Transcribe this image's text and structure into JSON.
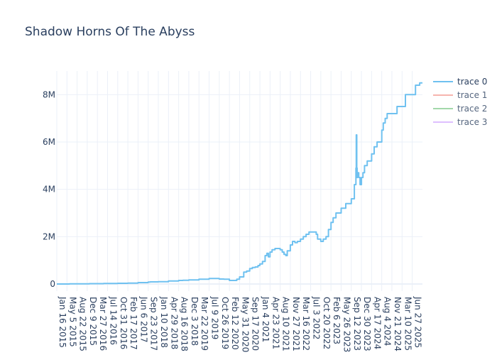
{
  "chart_data": {
    "type": "line",
    "title": "Shadow Horns Of The Abyss",
    "xlabel": "",
    "ylabel": "",
    "x_range": [
      "2015-01-16",
      "2025-10-15"
    ],
    "ylim": [
      -300000,
      9000000
    ],
    "y_ticks": [
      {
        "value": 0,
        "label": "0"
      },
      {
        "value": 2000000,
        "label": "2M"
      },
      {
        "value": 4000000,
        "label": "4M"
      },
      {
        "value": 6000000,
        "label": "6M"
      },
      {
        "value": 8000000,
        "label": "8M"
      }
    ],
    "x_ticks": [
      {
        "date": "2015-01-16",
        "label": "Jan 16 2015"
      },
      {
        "date": "2015-05-05",
        "label": "May 5 2015"
      },
      {
        "date": "2015-08-22",
        "label": "Aug 22 2015"
      },
      {
        "date": "2015-12-09",
        "label": "Dec 9 2015"
      },
      {
        "date": "2016-03-27",
        "label": "Mar 27 2016"
      },
      {
        "date": "2016-07-14",
        "label": "Jul 14 2016"
      },
      {
        "date": "2016-10-31",
        "label": "Oct 31 2016"
      },
      {
        "date": "2017-02-17",
        "label": "Feb 17 2017"
      },
      {
        "date": "2017-06-06",
        "label": "Jun 6 2017"
      },
      {
        "date": "2017-09-23",
        "label": "Sep 23 2017"
      },
      {
        "date": "2018-01-10",
        "label": "Jan 10 2018"
      },
      {
        "date": "2018-04-29",
        "label": "Apr 29 2018"
      },
      {
        "date": "2018-08-16",
        "label": "Aug 16 2018"
      },
      {
        "date": "2018-12-03",
        "label": "Dec 3 2018"
      },
      {
        "date": "2019-03-22",
        "label": "Mar 22 2019"
      },
      {
        "date": "2019-07-09",
        "label": "Jul 9 2019"
      },
      {
        "date": "2019-10-26",
        "label": "Oct 26 2019"
      },
      {
        "date": "2020-02-12",
        "label": "Feb 12 2020"
      },
      {
        "date": "2020-05-31",
        "label": "May 31 2020"
      },
      {
        "date": "2020-09-17",
        "label": "Sep 17 2020"
      },
      {
        "date": "2021-01-04",
        "label": "Jan 4 2021"
      },
      {
        "date": "2021-04-23",
        "label": "Apr 23 2021"
      },
      {
        "date": "2021-08-10",
        "label": "Aug 10 2021"
      },
      {
        "date": "2021-11-27",
        "label": "Nov 27 2021"
      },
      {
        "date": "2022-03-16",
        "label": "Mar 16 2022"
      },
      {
        "date": "2022-07-03",
        "label": "Jul 3 2022"
      },
      {
        "date": "2022-10-20",
        "label": "Oct 20 2022"
      },
      {
        "date": "2023-02-06",
        "label": "Feb 6 2023"
      },
      {
        "date": "2023-05-26",
        "label": "May 26 2023"
      },
      {
        "date": "2023-09-12",
        "label": "Sep 12 2023"
      },
      {
        "date": "2023-12-30",
        "label": "Dec 30 2023"
      },
      {
        "date": "2024-04-17",
        "label": "Apr 17 2024"
      },
      {
        "date": "2024-08-04",
        "label": "Aug 4 2024"
      },
      {
        "date": "2024-11-21",
        "label": "Nov 21 2024"
      },
      {
        "date": "2025-03-10",
        "label": "Mar 10 2025"
      },
      {
        "date": "2025-06-27",
        "label": "Jun 27 2025"
      }
    ],
    "grid": true,
    "legend_position": "top-right",
    "series": [
      {
        "name": "trace 0",
        "color": "#6fc1f0",
        "opacity": 1,
        "x": [
          "2015-01-16",
          "2015-06-01",
          "2016-01-01",
          "2016-06-01",
          "2016-10-31",
          "2017-02-17",
          "2017-06-06",
          "2017-09-23",
          "2017-10-15",
          "2018-01-10",
          "2018-04-29",
          "2018-08-16",
          "2018-10-01",
          "2018-12-03",
          "2019-03-22",
          "2019-07-09",
          "2019-10-26",
          "2019-12-15",
          "2020-02-12",
          "2020-05-01",
          "2020-05-31",
          "2020-07-15",
          "2020-08-15",
          "2020-09-17",
          "2020-10-15",
          "2020-11-15",
          "2020-12-15",
          "2021-01-04",
          "2021-02-01",
          "2021-03-01",
          "2021-03-20",
          "2021-04-05",
          "2021-04-23",
          "2021-05-15",
          "2021-06-15",
          "2021-07-10",
          "2021-08-10",
          "2021-09-01",
          "2021-09-20",
          "2021-10-10",
          "2021-10-25",
          "2021-11-27",
          "2021-12-20",
          "2022-01-15",
          "2022-02-10",
          "2022-03-16",
          "2022-04-15",
          "2022-05-15",
          "2022-06-15",
          "2022-07-03",
          "2022-08-01",
          "2022-09-01",
          "2022-09-15",
          "2022-10-20",
          "2022-11-15",
          "2022-12-15",
          "2023-01-10",
          "2023-02-06",
          "2023-03-01",
          "2023-04-01",
          "2023-05-26",
          "2023-07-15",
          "2023-09-12",
          "2023-10-15",
          "2023-11-01",
          "2023-11-05",
          "2023-11-10",
          "2023-11-14",
          "2023-11-18",
          "2023-12-01",
          "2023-12-15",
          "2023-12-30",
          "2024-01-15",
          "2024-02-01",
          "2024-03-01",
          "2024-04-17",
          "2024-05-15",
          "2024-06-15",
          "2024-08-04",
          "2024-08-20",
          "2024-09-10",
          "2024-10-01",
          "2024-11-21",
          "2025-01-15",
          "2025-03-10",
          "2025-04-15",
          "2025-06-27",
          "2025-08-01",
          "2025-09-15",
          "2025-10-15"
        ],
        "y": [
          0,
          10000,
          15000,
          20000,
          30000,
          40000,
          60000,
          80000,
          90000,
          100000,
          130000,
          150000,
          160000,
          170000,
          200000,
          230000,
          210000,
          200000,
          150000,
          200000,
          300000,
          500000,
          550000,
          650000,
          700000,
          720000,
          780000,
          850000,
          950000,
          1200000,
          1300000,
          1150000,
          1350000,
          1450000,
          1500000,
          1500000,
          1450000,
          1350000,
          1250000,
          1200000,
          1400000,
          1650000,
          1800000,
          1750000,
          1800000,
          1900000,
          2000000,
          2100000,
          2200000,
          2200000,
          2200000,
          2100000,
          1900000,
          1800000,
          1900000,
          2000000,
          2300000,
          2600000,
          2800000,
          3000000,
          3200000,
          3400000,
          3600000,
          4200000,
          4900000,
          6300000,
          4900000,
          4500000,
          4700000,
          4500000,
          4200000,
          4500000,
          4700000,
          5000000,
          5200000,
          5500000,
          5800000,
          6000000,
          6500000,
          6800000,
          7000000,
          7200000,
          7200000,
          7500000,
          7500000,
          8000000,
          8000000,
          8400000,
          8500000,
          8500000
        ]
      },
      {
        "name": "trace 1",
        "color": "#f5a39a",
        "opacity": 0.8,
        "x": [],
        "y": []
      },
      {
        "name": "trace 2",
        "color": "#8ccf96",
        "opacity": 0.8,
        "x": [],
        "y": []
      },
      {
        "name": "trace 3",
        "color": "#d6b0ff",
        "opacity": 0.8,
        "x": [],
        "y": []
      }
    ]
  }
}
